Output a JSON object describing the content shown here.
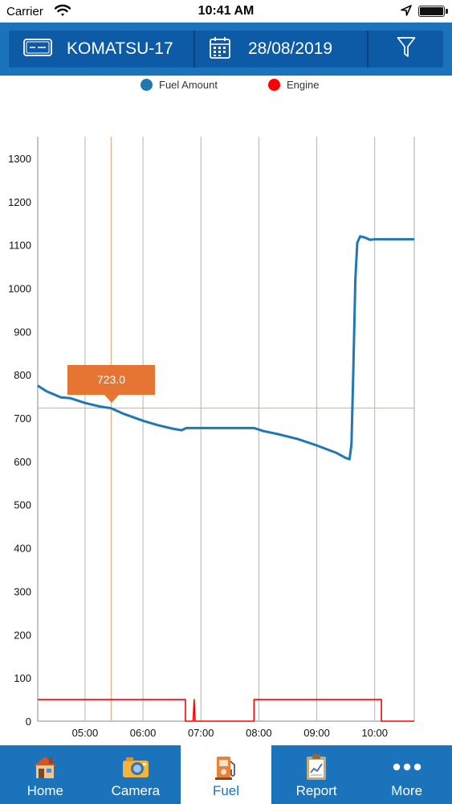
{
  "status_bar": {
    "carrier": "Carrier",
    "time": "10:41 AM"
  },
  "header": {
    "vehicle": "KOMATSU-17",
    "date": "28/08/2019",
    "vehicle_icon": "license-plate-icon",
    "date_icon": "calendar-icon",
    "filter_icon": "filter-icon"
  },
  "legend": {
    "items": [
      {
        "label": "Fuel Amount",
        "color": "#1f77b4"
      },
      {
        "label": "Engine",
        "color": "#ff0000"
      }
    ]
  },
  "tooltip": {
    "value": "723.0"
  },
  "chart_data": {
    "type": "line",
    "x_ticks": [
      "05:00",
      "06:00",
      "07:00",
      "08:00",
      "09:00",
      "10:00"
    ],
    "y_ticks": [
      0,
      100,
      200,
      300,
      400,
      500,
      600,
      700,
      800,
      900,
      1000,
      1100,
      1200,
      1300
    ],
    "xlim": [
      "04:11",
      "10:41"
    ],
    "ylim": [
      0,
      1350
    ],
    "grid": {
      "vertical": true,
      "horizontal": false
    },
    "legend_position": "top-center",
    "crosshair": {
      "x": "05:27",
      "y": 723.0
    },
    "series": [
      {
        "name": "Fuel Amount",
        "color": "#1f77b4",
        "points": [
          [
            "04:11",
            775
          ],
          [
            "04:20",
            762
          ],
          [
            "04:35",
            748
          ],
          [
            "04:45",
            746
          ],
          [
            "05:00",
            735
          ],
          [
            "05:15",
            727
          ],
          [
            "05:27",
            723
          ],
          [
            "05:40",
            710
          ],
          [
            "06:00",
            694
          ],
          [
            "06:15",
            684
          ],
          [
            "06:30",
            676
          ],
          [
            "06:40",
            672
          ],
          [
            "06:45",
            677
          ],
          [
            "07:00",
            677
          ],
          [
            "07:30",
            677
          ],
          [
            "07:55",
            677
          ],
          [
            "08:05",
            670
          ],
          [
            "08:20",
            663
          ],
          [
            "08:40",
            652
          ],
          [
            "09:00",
            637
          ],
          [
            "09:20",
            620
          ],
          [
            "09:30",
            608
          ],
          [
            "09:34",
            605
          ],
          [
            "09:36",
            640
          ],
          [
            "09:38",
            820
          ],
          [
            "09:40",
            1020
          ],
          [
            "09:42",
            1105
          ],
          [
            "09:45",
            1120
          ],
          [
            "09:50",
            1117
          ],
          [
            "09:55",
            1112
          ],
          [
            "10:00",
            1113
          ],
          [
            "10:20",
            1113
          ],
          [
            "10:41",
            1113
          ]
        ]
      },
      {
        "name": "Engine",
        "color": "#ff0000",
        "points": [
          [
            "04:11",
            50
          ],
          [
            "06:44",
            50
          ],
          [
            "06:44",
            0
          ],
          [
            "06:52",
            0
          ],
          [
            "06:53",
            50
          ],
          [
            "06:54",
            0
          ],
          [
            "07:55",
            0
          ],
          [
            "07:55",
            50
          ],
          [
            "10:07",
            50
          ],
          [
            "10:07",
            0
          ],
          [
            "10:41",
            0
          ]
        ]
      }
    ]
  },
  "tabs": [
    {
      "label": "Home",
      "icon": "house-icon",
      "active": false
    },
    {
      "label": "Camera",
      "icon": "camera-icon",
      "active": false
    },
    {
      "label": "Fuel",
      "icon": "fuel-pump-icon",
      "active": true
    },
    {
      "label": "Report",
      "icon": "report-clipboard-icon",
      "active": false
    },
    {
      "label": "More",
      "icon": "more-dots-icon",
      "active": false
    }
  ]
}
